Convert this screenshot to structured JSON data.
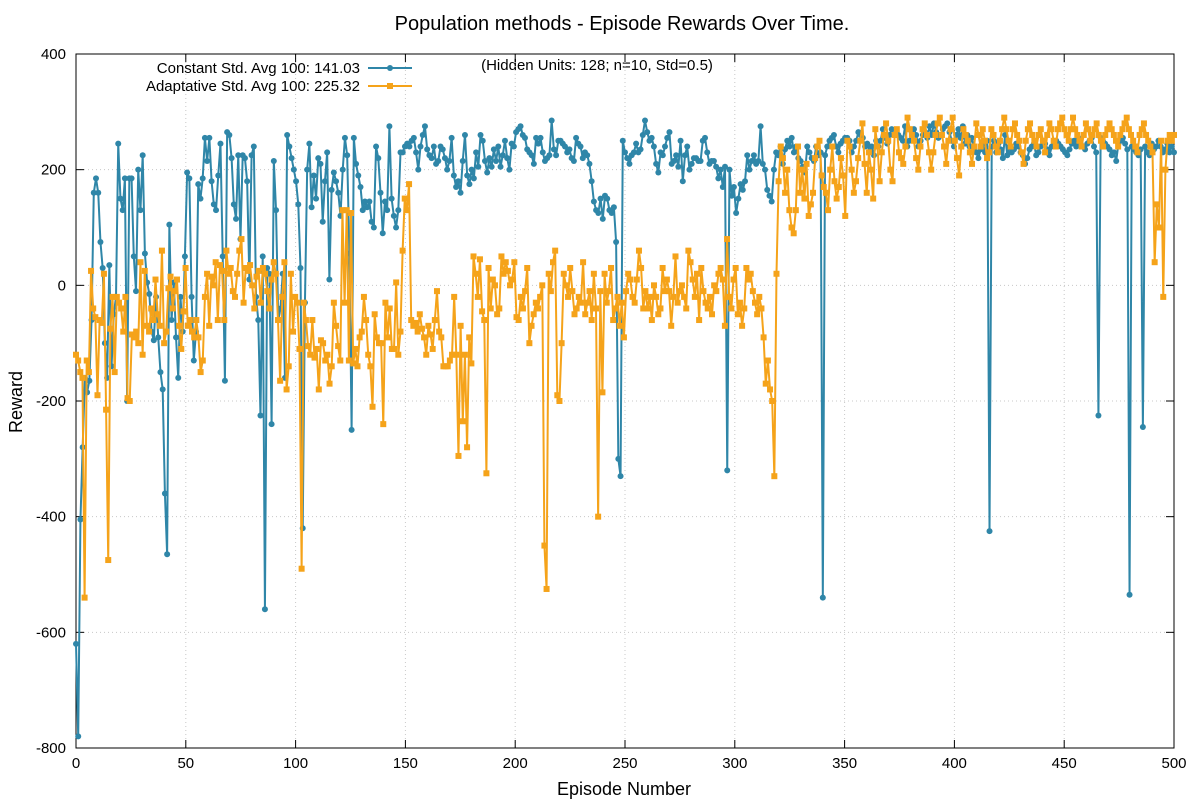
{
  "chart_data": {
    "type": "line",
    "title": "Population methods - Episode Rewards Over Time.",
    "subtitle": "(Hidden Units: 128; n=10, Std=0.5)",
    "xlabel": "Episode Number",
    "ylabel": "Reward",
    "xlim": [
      0,
      500
    ],
    "ylim": [
      -800,
      400
    ],
    "x_ticks": [
      "0",
      "50",
      "100",
      "150",
      "200",
      "250",
      "300",
      "350",
      "400",
      "450",
      "500"
    ],
    "y_ticks": [
      "-800",
      "-600",
      "-400",
      "-200",
      "0",
      "200",
      "400"
    ],
    "grid": true,
    "legend_position": "top-left",
    "series": [
      {
        "name": "Constant Std. Avg 100: 141.03",
        "color": "#2f86a8",
        "marker": "circle",
        "values": [
          -620,
          -780,
          -405,
          -280,
          -160,
          -185,
          -165,
          -60,
          160,
          185,
          160,
          75,
          30,
          -100,
          -160,
          35,
          -140,
          -50,
          -20,
          245,
          150,
          130,
          185,
          -200,
          185,
          185,
          50,
          -10,
          200,
          130,
          225,
          55,
          5,
          -15,
          -80,
          -95,
          -20,
          -90,
          -150,
          -180,
          -360,
          -465,
          105,
          -60,
          5,
          -90,
          -160,
          -20,
          -80,
          50,
          195,
          185,
          -20,
          -130,
          -80,
          175,
          150,
          185,
          255,
          215,
          255,
          180,
          140,
          130,
          190,
          245,
          50,
          -165,
          265,
          260,
          220,
          140,
          115,
          225,
          80,
          225,
          220,
          180,
          10,
          225,
          240,
          -20,
          -60,
          -225,
          50,
          -560,
          30,
          20,
          -240,
          215,
          130,
          -60,
          -40,
          20,
          -160,
          260,
          240,
          220,
          200,
          180,
          140,
          30,
          -420,
          -30,
          200,
          245,
          135,
          190,
          150,
          220,
          210,
          110,
          180,
          230,
          10,
          165,
          195,
          180,
          160,
          120,
          200,
          255,
          225,
          55,
          -250,
          255,
          210,
          190,
          170,
          130,
          145,
          135,
          145,
          110,
          100,
          240,
          220,
          160,
          90,
          145,
          130,
          275,
          150,
          120,
          100,
          130,
          230,
          230,
          240,
          245,
          240,
          250,
          255,
          230,
          200,
          240,
          260,
          275,
          235,
          225,
          220,
          240,
          210,
          215,
          240,
          235,
          220,
          200,
          215,
          255,
          190,
          170,
          180,
          160,
          215,
          260,
          190,
          175,
          200,
          185,
          230,
          205,
          260,
          250,
          215,
          195,
          220,
          205,
          235,
          215,
          240,
          205,
          225,
          250,
          220,
          200,
          245,
          240,
          265,
          270,
          275,
          260,
          255,
          235,
          230,
          225,
          210,
          255,
          245,
          255,
          230,
          215,
          220,
          225,
          285,
          235,
          225,
          250,
          250,
          245,
          240,
          230,
          235,
          220,
          215,
          255,
          245,
          240,
          220,
          230,
          225,
          210,
          180,
          145,
          130,
          125,
          150,
          115,
          155,
          150,
          130,
          125,
          135,
          75,
          -300,
          -330,
          250,
          230,
          220,
          210,
          225,
          230,
          245,
          230,
          235,
          260,
          285,
          265,
          250,
          255,
          240,
          210,
          195,
          230,
          225,
          240,
          255,
          265,
          210,
          215,
          225,
          205,
          250,
          180,
          225,
          240,
          200,
          210,
          220,
          220,
          215,
          215,
          250,
          255,
          230,
          210,
          215,
          215,
          205,
          185,
          200,
          170,
          205,
          -320,
          200,
          155,
          170,
          125,
          150,
          175,
          165,
          180,
          225,
          200,
          215,
          225,
          210,
          215,
          275,
          210,
          200,
          165,
          155,
          145,
          200,
          230,
          225,
          240,
          210,
          235,
          250,
          240,
          255,
          230,
          240,
          220,
          215,
          205,
          195,
          240,
          230,
          220,
          215,
          240,
          225,
          230,
          -540,
          225,
          240,
          250,
          255,
          260,
          240,
          230,
          245,
          250,
          255,
          255,
          250,
          230,
          240,
          250,
          265,
          260,
          255,
          240,
          245,
          230,
          240,
          225,
          250,
          240,
          250,
          270,
          255,
          245,
          260,
          270,
          260,
          260,
          260,
          255,
          250,
          275,
          240,
          250,
          265,
          270,
          260,
          240,
          250,
          260,
          265,
          255,
          275,
          260,
          280,
          265,
          255,
          260,
          270,
          275,
          280,
          265,
          250,
          240,
          260,
          270,
          255,
          275,
          245,
          260,
          240,
          255,
          240,
          230,
          220,
          235,
          245,
          230,
          250,
          -425,
          240,
          250,
          230,
          245,
          235,
          220,
          260,
          225,
          240,
          230,
          235,
          245,
          240,
          230,
          225,
          210,
          220,
          235,
          240,
          245,
          225,
          230,
          240,
          250,
          245,
          235,
          225,
          240,
          245,
          250,
          245,
          240,
          235,
          230,
          225,
          235,
          245,
          250,
          240,
          255,
          245,
          240,
          235,
          245,
          250,
          255,
          240,
          230,
          -225,
          255,
          250,
          245,
          240,
          235,
          225,
          230,
          215,
          245,
          250,
          255,
          245,
          235,
          -535,
          240,
          235,
          230,
          225,
          235,
          -245,
          240,
          230,
          225,
          245,
          235,
          240,
          250,
          240,
          230,
          235,
          245,
          230,
          240,
          230
        ]
      },
      {
        "name": "Adaptative Std. Avg 100: 225.32",
        "color": "#f5a31a",
        "marker": "square",
        "values": [
          -120,
          -130,
          -150,
          -160,
          -540,
          -130,
          -150,
          25,
          -40,
          -55,
          -190,
          -60,
          -65,
          20,
          -215,
          -475,
          -75,
          -20,
          -150,
          -20,
          -30,
          -40,
          -80,
          -20,
          -195,
          -200,
          -85,
          -90,
          -80,
          -100,
          40,
          -120,
          25,
          -70,
          -80,
          -40,
          -60,
          10,
          -50,
          -70,
          60,
          -100,
          -80,
          -5,
          15,
          -40,
          -10,
          10,
          -70,
          -110,
          -45,
          30,
          -70,
          -60,
          -80,
          -90,
          -60,
          -90,
          -150,
          -130,
          -20,
          20,
          -70,
          15,
          0,
          40,
          -60,
          35,
          25,
          -60,
          60,
          20,
          30,
          -10,
          -20,
          20,
          60,
          80,
          -30,
          30,
          25,
          35,
          0,
          -40,
          15,
          25,
          -30,
          30,
          20,
          -10,
          -40,
          10,
          40,
          20,
          -60,
          -165,
          -20,
          40,
          -180,
          -140,
          20,
          -80,
          -20,
          -30,
          -110,
          -490,
          -30,
          -60,
          -105,
          -120,
          -60,
          -125,
          -110,
          -180,
          -95,
          -100,
          -130,
          -120,
          -170,
          -140,
          -30,
          -70,
          -105,
          -130,
          130,
          -30,
          130,
          -130,
          125,
          -135,
          -110,
          -140,
          -90,
          -80,
          -20,
          -60,
          -120,
          -140,
          -210,
          -50,
          -90,
          -100,
          -100,
          -240,
          -30,
          -90,
          -40,
          -110,
          -110,
          5,
          -120,
          -80,
          60,
          150,
          130,
          175,
          -60,
          -70,
          -65,
          -80,
          -50,
          -75,
          -90,
          -120,
          -70,
          -85,
          -110,
          -60,
          -10,
          -80,
          -90,
          -140,
          -140,
          -140,
          -130,
          -120,
          -20,
          -120,
          -295,
          -70,
          -235,
          -120,
          -280,
          -90,
          -135,
          50,
          20,
          -20,
          45,
          -45,
          -60,
          -325,
          30,
          -40,
          10,
          0,
          -50,
          -40,
          50,
          20,
          40,
          25,
          0,
          10,
          40,
          -55,
          -60,
          -20,
          -40,
          -10,
          30,
          -100,
          -70,
          -50,
          -30,
          -40,
          -20,
          0,
          -450,
          -525,
          20,
          -10,
          40,
          60,
          -190,
          -200,
          -100,
          20,
          0,
          -20,
          30,
          -10,
          -50,
          -40,
          -20,
          -30,
          40,
          -50,
          -30,
          -10,
          -60,
          20,
          -40,
          -400,
          -10,
          -185,
          20,
          -30,
          -10,
          30,
          -60,
          -40,
          -20,
          -70,
          -30,
          -90,
          -10,
          20,
          10,
          -20,
          -30,
          10,
          60,
          30,
          -40,
          -10,
          -40,
          -20,
          -60,
          0,
          -20,
          -50,
          -40,
          30,
          -10,
          10,
          -10,
          -70,
          -20,
          50,
          -30,
          -10,
          0,
          -20,
          -40,
          60,
          40,
          10,
          -20,
          20,
          -60,
          30,
          -10,
          -30,
          -40,
          -20,
          -50,
          0,
          -10,
          20,
          30,
          10,
          -70,
          80,
          -20,
          -40,
          10,
          30,
          -50,
          -30,
          -70,
          -40,
          30,
          10,
          20,
          -10,
          -30,
          -50,
          -20,
          -40,
          -90,
          -170,
          -130,
          -180,
          -200,
          -330,
          20,
          180,
          240,
          220,
          160,
          200,
          130,
          100,
          90,
          130,
          240,
          160,
          200,
          150,
          210,
          120,
          140,
          160,
          220,
          240,
          250,
          190,
          170,
          160,
          130,
          200,
          240,
          180,
          150,
          170,
          220,
          190,
          120,
          250,
          240,
          200,
          160,
          180,
          220,
          250,
          280,
          210,
          160,
          230,
          200,
          150,
          270,
          240,
          180,
          230,
          260,
          280,
          250,
          200,
          180,
          260,
          270,
          230,
          220,
          210,
          240,
          290,
          270,
          260,
          250,
          220,
          200,
          240,
          270,
          280,
          260,
          230,
          200,
          230,
          260,
          280,
          290,
          260,
          240,
          210,
          250,
          270,
          290,
          250,
          220,
          190,
          240,
          270,
          260,
          250,
          230,
          210,
          240,
          280,
          260,
          240,
          270,
          250,
          220,
          230,
          270,
          260,
          240,
          230,
          250,
          270,
          290,
          270,
          250,
          240,
          270,
          280,
          260,
          250,
          230,
          210,
          250,
          270,
          280,
          260,
          250,
          240,
          260,
          270,
          250,
          230,
          260,
          280,
          270,
          250,
          240,
          270,
          280,
          290,
          270,
          260,
          250,
          270,
          290,
          270,
          260,
          250,
          240,
          260,
          280,
          270,
          250,
          260,
          270,
          280,
          260,
          250,
          240,
          260,
          270,
          280,
          270,
          260,
          250,
          240,
          260,
          270,
          280,
          290,
          270,
          260,
          250,
          240,
          230,
          260,
          270,
          280,
          260,
          250,
          240,
          230,
          40,
          140,
          100,
          250,
          -20,
          200,
          250,
          260,
          250,
          260
        ]
      }
    ]
  }
}
